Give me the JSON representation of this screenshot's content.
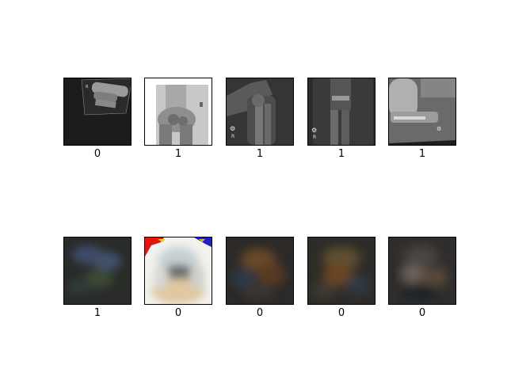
{
  "figure": {
    "rows": [
      {
        "kind": "xray",
        "tiles": [
          {
            "label": "0",
            "variant": "xray-rotated"
          },
          {
            "label": "1",
            "variant": "xray-inverted"
          },
          {
            "label": "1",
            "variant": "xray-elbow-lateral"
          },
          {
            "label": "1",
            "variant": "xray-forearm"
          },
          {
            "label": "1",
            "variant": "xray-elbow-bright"
          }
        ]
      },
      {
        "kind": "reconstruction",
        "tiles": [
          {
            "label": "1",
            "variant": "blur-dark-blue"
          },
          {
            "label": "0",
            "variant": "blur-bright"
          },
          {
            "label": "0",
            "variant": "blur-brown"
          },
          {
            "label": "0",
            "variant": "blur-olive"
          },
          {
            "label": "0",
            "variant": "blur-grey"
          }
        ]
      }
    ]
  }
}
